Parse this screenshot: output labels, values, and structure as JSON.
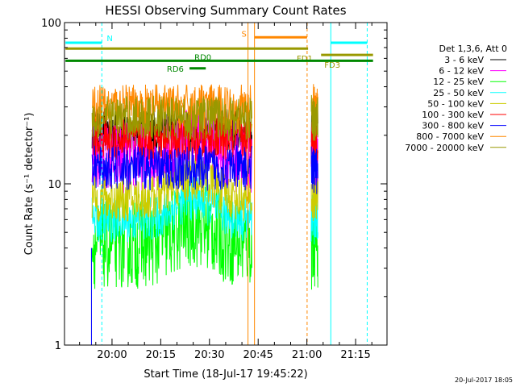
{
  "chart_data": {
    "type": "line",
    "title": "HESSI Observing Summary Count Rates",
    "ylabel": "Count Rate (s⁻¹ detector⁻¹)",
    "xlabel": "Start Time (18-Jul-17 19:45:22)",
    "y_scale": "log",
    "ylim": [
      1,
      100
    ],
    "x_ticks": [
      "20:00",
      "20:15",
      "20:30",
      "20:45",
      "21:00",
      "21:15"
    ],
    "y_ticks": [
      "1",
      "10",
      "100"
    ],
    "legend_header": "Det 1,3,6, Att 0",
    "timestamp": "20-Jul-2017 18:05",
    "series": [
      {
        "name": "3 - 6 keV",
        "color": "#000000",
        "level": 21.5
      },
      {
        "name": "6 - 12 keV",
        "color": "#ff00ff",
        "level": 14.5
      },
      {
        "name": "12 - 25 keV",
        "color": "#00ff00",
        "level": 4.2
      },
      {
        "name": "25 - 50 keV",
        "color": "#00ffff",
        "level": 6.0
      },
      {
        "name": "50 - 100 keV",
        "color": "#cccc00",
        "level": 8.0
      },
      {
        "name": "100 - 300 keV",
        "color": "#ff0000",
        "level": 19.0
      },
      {
        "name": "300 - 800 keV",
        "color": "#0000ff",
        "level": 12.5
      },
      {
        "name": "800 - 7000 keV",
        "color": "#ff8800",
        "level": 30.0
      },
      {
        "name": "7000 - 20000 keV",
        "color": "#999900",
        "level": 25.5
      }
    ],
    "flags": [
      {
        "label": "N",
        "color": "#00ffff",
        "level": 75
      },
      {
        "label": "S",
        "color": "#ff8800",
        "level": 81
      },
      {
        "label": "FD1",
        "color": "#999900",
        "level": 69
      },
      {
        "label": "FD3",
        "color": "#999900",
        "level": 63
      },
      {
        "label": "RD0",
        "color": "#008800",
        "level": 58
      },
      {
        "label": "RD6",
        "color": "#008800",
        "level": 52
      }
    ]
  }
}
